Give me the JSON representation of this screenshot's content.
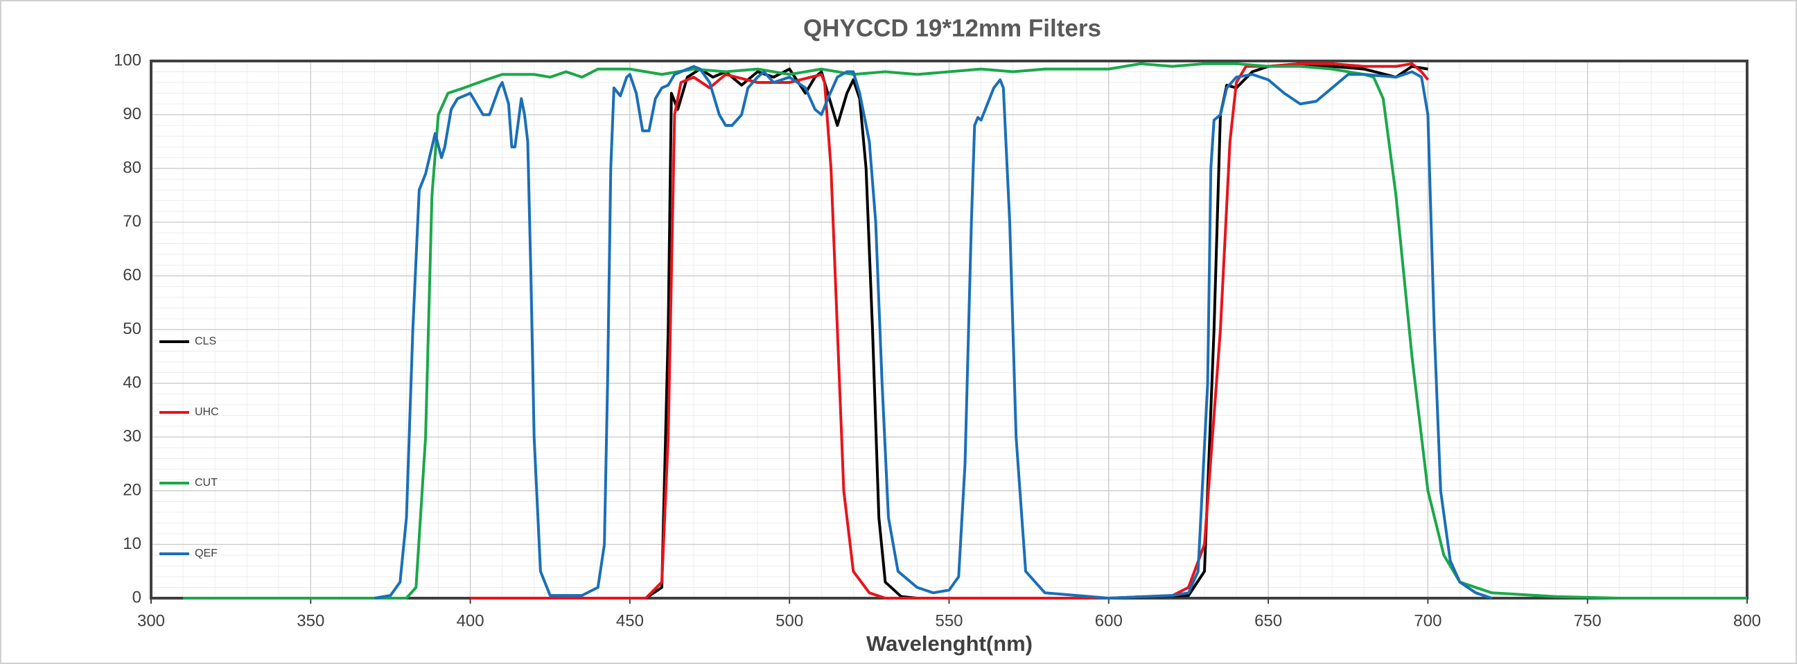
{
  "chart_data": {
    "type": "line",
    "title": "QHYCCD 19*12mm Filters",
    "x_label": "Wavelenght(nm)",
    "xlim": [
      300,
      800
    ],
    "xticks": [
      300,
      350,
      400,
      450,
      500,
      550,
      600,
      650,
      700,
      750,
      800
    ],
    "ylim": [
      0,
      100
    ],
    "yticks": [
      0,
      10,
      20,
      30,
      40,
      50,
      60,
      70,
      80,
      90,
      100
    ],
    "grid": true,
    "minor_grid": true,
    "legend": "left",
    "series": [
      {
        "name": "CLS",
        "color": "#000000",
        "x": [
          400,
          455,
          460,
          462,
          463,
          465,
          468,
          472,
          476,
          480,
          485,
          490,
          495,
          500,
          505,
          508,
          510,
          513,
          515,
          518,
          520,
          522,
          524,
          526,
          528,
          530,
          535,
          540,
          600,
          625,
          630,
          633,
          635,
          637,
          640,
          645,
          650,
          660,
          670,
          680,
          690,
          695,
          700
        ],
        "values": [
          0,
          0,
          2,
          50,
          94,
          91,
          97,
          98.5,
          97,
          98,
          95.5,
          98,
          97,
          98.5,
          94,
          97,
          98,
          92,
          88,
          94,
          96.5,
          93,
          80,
          50,
          15,
          3,
          0.3,
          0,
          0,
          0.5,
          5,
          50,
          90,
          95.5,
          95,
          98,
          99,
          99.5,
          99,
          98.5,
          97,
          99,
          98.5
        ]
      },
      {
        "name": "UHC",
        "color": "#e8141b",
        "x": [
          400,
          455,
          460,
          462,
          464,
          466,
          470,
          475,
          480,
          490,
          500,
          510,
          511,
          513,
          515,
          517,
          520,
          525,
          530,
          600,
          620,
          625,
          630,
          635,
          638,
          640,
          643,
          650,
          660,
          670,
          680,
          690,
          695,
          698,
          700
        ],
        "values": [
          0,
          0,
          3,
          30,
          90,
          96,
          97,
          95,
          97.5,
          96,
          96,
          97.5,
          96,
          80,
          50,
          20,
          5,
          1,
          0,
          0,
          0.5,
          2,
          10,
          50,
          85,
          96,
          99,
          99,
          99.5,
          99.5,
          99,
          99,
          99.5,
          98,
          96.5
        ]
      },
      {
        "name": "CUT",
        "color": "#1aa84a",
        "x": [
          310,
          380,
          383,
          386,
          388,
          390,
          393,
          398,
          405,
          410,
          420,
          425,
          430,
          435,
          440,
          450,
          460,
          470,
          480,
          490,
          500,
          510,
          520,
          530,
          540,
          550,
          560,
          570,
          580,
          590,
          600,
          610,
          620,
          630,
          640,
          650,
          660,
          670,
          680,
          683,
          686,
          690,
          695,
          700,
          705,
          710,
          720,
          740,
          760,
          800
        ],
        "values": [
          0,
          0,
          2,
          30,
          75,
          90,
          94,
          95,
          96.5,
          97.5,
          97.5,
          97,
          98,
          97,
          98.5,
          98.5,
          97.5,
          98.5,
          98,
          98.5,
          97.5,
          98.5,
          97.5,
          98,
          97.5,
          98,
          98.5,
          98,
          98.5,
          98.5,
          98.5,
          99.5,
          99,
          99.5,
          99.5,
          99,
          99,
          98.5,
          97.5,
          97,
          93,
          75,
          45,
          20,
          8,
          3,
          1,
          0.3,
          0,
          0
        ]
      },
      {
        "name": "QEF",
        "color": "#1a6fb8",
        "x": [
          370,
          375,
          378,
          380,
          382,
          384,
          386,
          388,
          389,
          391,
          392,
          394,
          396,
          400,
          404,
          406,
          409,
          410,
          412,
          413,
          414,
          416,
          417,
          418,
          419,
          420,
          422,
          425,
          435,
          440,
          442,
          443,
          444,
          445,
          447,
          449,
          450,
          452,
          454,
          456,
          458,
          460,
          462,
          464,
          466,
          470,
          472,
          475,
          478,
          480,
          482,
          485,
          487,
          490,
          492,
          495,
          500,
          505,
          508,
          510,
          512,
          515,
          518,
          520,
          522,
          525,
          527,
          529,
          531,
          534,
          540,
          545,
          550,
          553,
          555,
          557,
          558,
          559,
          560,
          562,
          564,
          566,
          567,
          569,
          571,
          574,
          580,
          590,
          600,
          620,
          625,
          628,
          631,
          632,
          633,
          635,
          637,
          640,
          645,
          650,
          655,
          660,
          665,
          670,
          675,
          680,
          690,
          695,
          698,
          700,
          702,
          704,
          707,
          710,
          715,
          720
        ],
        "values": [
          0,
          0.5,
          3,
          15,
          50,
          76,
          79,
          84,
          86.5,
          82,
          84,
          91,
          93,
          94,
          90,
          90,
          95,
          96,
          92,
          84,
          84,
          93,
          90,
          85,
          60,
          30,
          5,
          0.5,
          0.5,
          2,
          10,
          40,
          80,
          95,
          93.5,
          97,
          97.5,
          94,
          87,
          87,
          93,
          95,
          95.5,
          97.5,
          98,
          99,
          98.5,
          96,
          90,
          88,
          88,
          90,
          95,
          97,
          98,
          96,
          97,
          95,
          91,
          90,
          93,
          97,
          98,
          98,
          94,
          85,
          70,
          40,
          15,
          5,
          2,
          1,
          1.5,
          4,
          25,
          70,
          88,
          89.5,
          89,
          92,
          95,
          96.5,
          95,
          70,
          30,
          5,
          1,
          0.5,
          0,
          0.5,
          1,
          5,
          40,
          80,
          89,
          90,
          95,
          97,
          97.5,
          96.5,
          94,
          92,
          92.5,
          95,
          97.5,
          97.5,
          97,
          98,
          97,
          90,
          50,
          20,
          7,
          3,
          1,
          0
        ]
      }
    ]
  }
}
